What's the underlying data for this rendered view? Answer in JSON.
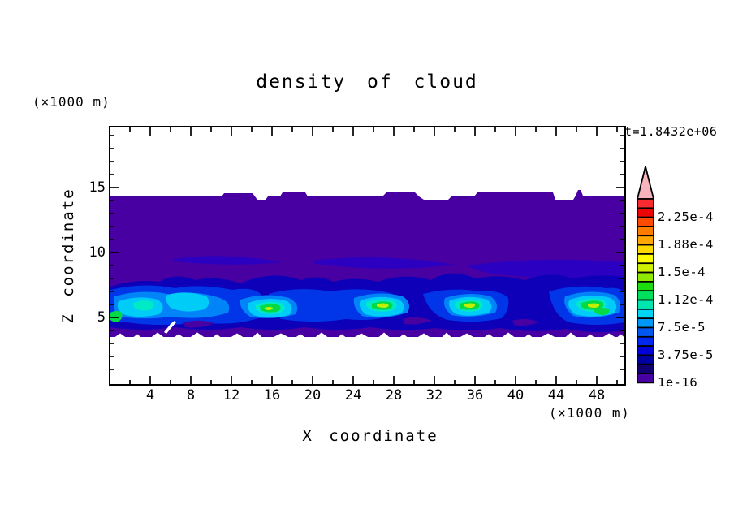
{
  "title": "density of cloud",
  "annotations": {
    "time": "t=1.8432e+06",
    "x_unit_top": "(×1000 m)",
    "x_unit_bottom": "(×1000 m)"
  },
  "axes": {
    "x": {
      "label": "X coordinate",
      "major_ticks": [
        4,
        8,
        12,
        16,
        20,
        24,
        28,
        32,
        36,
        40,
        44,
        48
      ],
      "minor_ticks": [
        2,
        6,
        10,
        14,
        18,
        22,
        26,
        30,
        34,
        38,
        42,
        46,
        50
      ],
      "range": [
        0,
        50.6
      ]
    },
    "z": {
      "label": "Z coordinate",
      "major_ticks": [
        5,
        10,
        15
      ],
      "minor_ticks": [
        1,
        2,
        3,
        4,
        6,
        7,
        8,
        9,
        11,
        12,
        13,
        14,
        16,
        17,
        18,
        19
      ],
      "range": [
        0,
        19.75
      ]
    }
  },
  "colorbar": {
    "labels": [
      "2.25e-4",
      "1.88e-4",
      "1.5e-4",
      "1.12e-4",
      "7.5e-5",
      "3.75e-5",
      "1e-16"
    ],
    "cell_colors_top_to_bottom": [
      "#f82c30",
      "#ee0404",
      "#ff4a00",
      "#ff7c00",
      "#ffa600",
      "#ffd800",
      "#fbfb00",
      "#cef000",
      "#8fe800",
      "#1cdc10",
      "#00e05c",
      "#00e6ae",
      "#00d4f4",
      "#0098f8",
      "#0058f0",
      "#0028ee",
      "#0000d8",
      "#0000a2",
      "#100074",
      "#4800a2"
    ],
    "arrow_color": "#f8b4bc"
  },
  "chart_data": {
    "type": "filled_contour",
    "title": "density of cloud",
    "xlabel": "X coordinate",
    "ylabel": "Z coordinate",
    "units": "(×1000 m)",
    "time_annotation": "t=1.8432e+06",
    "x_range": [
      0,
      50.6
    ],
    "z_range": [
      0,
      19.75
    ],
    "contour_levels": [
      "1e-16",
      "3.75e-5",
      "7.5e-5",
      "1.12e-4",
      "1.5e-4",
      "1.88e-4",
      "2.25e-4"
    ],
    "level_step_per_cell": "1.25e-5",
    "description": "Vertical x-z cross-section of cloud density. A stratiform anvil layer (lowest contour level, ~1e-5) spans the whole domain between z≈3.5 and z≈14.5 (×1000 m) with a slightly bumpy top. Denser elongated streaks sit near z≈8.5-10. A turbulent convective band occupies z≈4-8 with four active cells near x≈16, 28, 36 and 47 whose cores reach ~1.5e-4 (green/yellow-green). Below z≈3.5 the domain is cloud-free (white) with a ragged cloud-base edge.",
    "field_layers": [
      {
        "name": "anvil-purple",
        "fill": "#4800a2",
        "paths": [
          "M0,85 L137,85 L140,81 L175,81 L178,85 L181,89 L191,89 L194,85 L209,85 L212,80 L240,80 L243,85 L335,85 L340,80 L375,80 L380,85 L386,89 L416,89 L420,85 L448,85 L452,80 L545,80 L548,89 L570,89 L573,84 L576,77 L579,77 L582,84 L633,84 L633,258 L0,258 Z"
        ]
      },
      {
        "name": "dense-streaks",
        "fill": "#2b00c0",
        "paths": [
          "M78,162 Q140,153 212,166 Q150,172 78,165 Z",
          "M250,164 Q330,154 425,169 Q340,179 252,168 Z",
          "M440,170 Q530,158 633,166 L633,184 Q550,190 470,180 Q448,176 440,170 Z"
        ]
      },
      {
        "name": "band-navy",
        "fill": "#0d00b8",
        "paths": [
          "M0,196 Q30,186 60,190 Q80,178 105,188 Q130,182 160,192 Q200,175 235,188 Q255,180 275,190 Q300,183 330,190 Q360,178 395,188 Q420,172 450,186 Q480,180 510,188 Q540,176 570,186 Q600,180 633,184 L633,250 Q600,255 560,248 Q520,254 480,247 Q440,253 400,247 Q360,252 320,246 Q280,252 240,246 Q200,252 160,246 Q120,252 80,246 Q40,252 0,246 Z"
        ]
      },
      {
        "name": "band-blue",
        "fill": "#0036e8",
        "paths": [
          "M0,200 Q40,190 80,198 Q110,192 150,200 Q175,196 185,205 Q190,220 182,235 Q150,245 110,240 Q60,246 20,240 Q0,238 0,235 Z",
          "M195,205 Q230,195 270,202 Q310,196 345,204 Q360,212 355,228 Q330,240 290,236 Q250,242 210,236 Q196,225 195,205 Z",
          "M385,205 Q420,196 455,202 Q480,200 490,210 Q492,225 482,235 Q450,242 415,237 Q392,230 385,205 Z",
          "M540,202 Q575,192 610,198 Q630,196 633,205 L633,240 Q600,246 565,240 Q545,232 540,202 Z"
        ]
      },
      {
        "name": "band-lightblue",
        "fill": "#0084f8",
        "paths": [
          "M5,208 Q40,198 75,206 Q105,200 135,210 Q150,216 145,228 Q115,238 75,233 Q35,238 8,232 Q2,220 5,208 Z",
          "M160,212 Q190,202 220,210 Q235,218 228,230 Q200,238 172,233 Q158,224 160,212 Z",
          "M300,210 Q330,200 360,208 Q372,216 366,228 Q335,238 310,232 Q298,222 300,210 Z",
          "M412,210 Q442,201 468,208 Q480,216 474,228 Q445,236 420,231 Q408,221 412,210 Z",
          "M560,208 Q590,198 620,206 Q632,214 626,228 Q595,238 570,232 Q556,220 560,208 Z"
        ]
      },
      {
        "name": "band-cyan",
        "fill": "#00ccf8",
        "paths": [
          "M10,214 Q35,206 58,212 Q70,220 60,230 Q35,236 15,230 Q6,222 10,214 Z",
          "M70,206 Q95,200 118,208 Q126,216 116,224 Q92,230 74,222 Q66,214 70,206 Z",
          "M170,216 Q195,207 218,214 Q228,222 220,231 Q195,237 176,231 Q166,223 170,216 Z",
          "M308,213 Q332,205 356,212 Q366,220 358,229 Q332,236 314,230 Q304,221 308,213 Z",
          "M418,213 Q442,205 464,212 Q474,220 466,228 Q441,235 424,229 Q414,220 418,213 Z",
          "M566,212 Q592,203 616,210 Q628,218 620,229 Q594,236 572,230 Q560,220 566,212 Z"
        ]
      },
      {
        "name": "band-turquoise",
        "fill": "#00eac6",
        "paths": [
          "M28,216 Q42,211 52,215 Q56,221 48,225 Q36,227 29,222 Z",
          "M180,218 Q198,212 212,217 Q218,223 210,228 Q194,232 184,227 Q176,222 180,218 Z",
          "M316,215 Q334,209 350,214 Q356,220 348,225 Q332,229 320,224 Q312,219 316,215 Z",
          "M426,215 Q442,209 456,214 Q462,220 454,225 Q439,229 429,224 Q421,219 426,215 Z",
          "M576,214 Q594,208 608,213 Q614,219 606,225 Q590,229 579,224 Q571,218 576,214 Z"
        ]
      },
      {
        "name": "cell-green",
        "fill": "#04da46",
        "paths": [
          "M0,228 Q8,224 14,228 Q16,235 10,239 Q3,240 0,237 Z",
          "M184,220 Q198,215 208,219 Q212,224 205,227 Q192,229 185,225 Z",
          "M322,217 Q336,212 346,216 Q350,221 343,224 Q329,226 322,222 Z",
          "M430,217 Q444,212 453,216 Q457,221 450,224 Q436,226 430,222 Z",
          "M580,216 Q596,211 606,215 Q610,221 602,224 Q586,226 580,221 Z",
          "M596,224 Q606,220 614,224 Q616,229 608,231 Q599,231 596,227 Z"
        ]
      },
      {
        "name": "cell-yellowgreen",
        "fill": "#c4ee00",
        "paths": [
          "M190,222 Q196,220 200,222 Q200,224 196,225 Q191,225 190,223 Z",
          "M328,218 Q336,215 342,218 Q344,221 338,222 Q331,222 328,220 Z",
          "M436,218 Q444,215 449,218 Q450,221 444,222 Q438,222 436,220 Z",
          "M588,218 Q596,215 602,218 Q603,221 597,222 Q590,222 588,220 Z"
        ]
      },
      {
        "name": "base-purple-speckles",
        "fill": "#4800a2",
        "paths": [
          "M90,240 Q110,235 128,241 Q112,248 92,246 Z",
          "M360,236 Q378,231 396,238 Q378,244 362,242 Z",
          "M495,238 Q512,233 528,240 Q510,246 497,243 Z"
        ]
      },
      {
        "name": "white-slash",
        "fill": "#ffffff",
        "paths": [
          "M66,252 L74,242 L79,238 L81,240 L73,249 L69,254 Z"
        ]
      }
    ],
    "bottom_teeth": [
      [
        5,
        14,
        5
      ],
      [
        28,
        10,
        4
      ],
      [
        50,
        16,
        6
      ],
      [
        78,
        12,
        4
      ],
      [
        98,
        18,
        6
      ],
      [
        126,
        10,
        4
      ],
      [
        148,
        16,
        5
      ],
      [
        175,
        12,
        6
      ],
      [
        200,
        20,
        5
      ],
      [
        228,
        12,
        4
      ],
      [
        252,
        16,
        6
      ],
      [
        280,
        10,
        4
      ],
      [
        300,
        18,
        5
      ],
      [
        330,
        14,
        6
      ],
      [
        356,
        10,
        4
      ],
      [
        378,
        16,
        5
      ],
      [
        408,
        12,
        6
      ],
      [
        430,
        18,
        5
      ],
      [
        460,
        12,
        4
      ],
      [
        482,
        16,
        6
      ],
      [
        510,
        10,
        4
      ],
      [
        530,
        18,
        5
      ],
      [
        560,
        14,
        6
      ],
      [
        586,
        10,
        4
      ],
      [
        606,
        16,
        5
      ],
      [
        624,
        9,
        4
      ]
    ]
  }
}
